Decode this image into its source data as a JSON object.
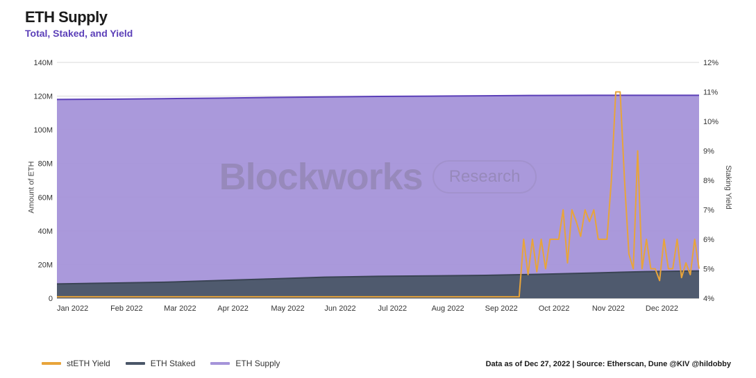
{
  "header": {
    "title": "ETH Supply",
    "subtitle": "Total, Staked, and Yield"
  },
  "chart": {
    "type": "area+line",
    "background_color": "#ffffff",
    "grid_color": "#d8d8d8",
    "left_axis": {
      "label": "Amount of ETH",
      "min": 0,
      "max": 140,
      "tick_step": 20,
      "tick_suffix": "M",
      "ticks": [
        "0",
        "20M",
        "40M",
        "60M",
        "80M",
        "100M",
        "120M",
        "140M"
      ]
    },
    "right_axis": {
      "label": "Staking Yield",
      "min": 4,
      "max": 12,
      "tick_step": 1,
      "tick_suffix": "%",
      "ticks": [
        "4%",
        "5%",
        "6%",
        "7%",
        "8%",
        "9%",
        "10%",
        "11%",
        "12%"
      ]
    },
    "x_axis": {
      "labels": [
        "Jan 2022",
        "Feb 2022",
        "Mar 2022",
        "Apr 2022",
        "May 2022",
        "Jun 2022",
        "Jul 2022",
        "Aug 2022",
        "Sep 2022",
        "Oct 2022",
        "Nov 2022",
        "Dec 2022"
      ]
    },
    "series": {
      "eth_supply": {
        "name": "ETH Supply",
        "color_fill": "#a594d9",
        "color_stroke": "#5b3fb8",
        "stroke_width": 2,
        "fill_opacity": 0.95,
        "values": [
          118,
          118.2,
          118.5,
          118.8,
          119.2,
          119.5,
          119.8,
          120,
          120.2,
          120.4,
          120.5,
          120.5,
          120.5
        ]
      },
      "eth_staked": {
        "name": "ETH Staked",
        "color_fill": "#4a5668",
        "color_stroke": "#3a4454",
        "stroke_width": 2,
        "fill_opacity": 0.95,
        "values": [
          8.5,
          9,
          9.5,
          10.5,
          11.5,
          12.5,
          13,
          13.3,
          13.6,
          14.2,
          15,
          15.8,
          16.2
        ]
      },
      "steth_yield": {
        "name": "stETH Yield",
        "color_stroke": "#e8a43a",
        "stroke_width": 2,
        "values_pct": [
          4.05,
          4.05,
          4.05,
          4.05,
          4.05,
          4.05,
          4.05,
          4.05,
          4.05,
          4.1,
          6.0,
          4.8,
          6.0,
          4.9,
          6.0,
          5.0,
          6.0,
          6.0,
          6.0,
          7.0,
          5.2,
          7.0,
          6.6,
          6.1,
          7.0,
          6.6,
          7.0,
          6.0,
          6.0,
          6.0,
          8.0,
          11.0,
          11.0,
          8.0,
          5.5,
          5.0,
          9.0,
          5.0,
          6.0,
          5.0,
          5.0,
          4.6,
          6.0,
          5.0,
          5.0,
          6.0,
          4.7,
          5.2,
          4.8,
          6.0,
          5.0
        ],
        "x_fraction_start": 0.0,
        "flat_until_fraction": 0.72
      }
    },
    "legend": [
      {
        "label": "stETH Yield",
        "color": "#e8a43a"
      },
      {
        "label": "ETH Staked",
        "color": "#4a5668"
      },
      {
        "label": "ETH Supply",
        "color": "#a594d9"
      }
    ],
    "watermark": {
      "main": "Blockworks",
      "badge": "Research"
    }
  },
  "footer": {
    "text": "Data as of Dec 27, 2022 | Source: Etherscan, Dune @KIV @hildobby"
  }
}
